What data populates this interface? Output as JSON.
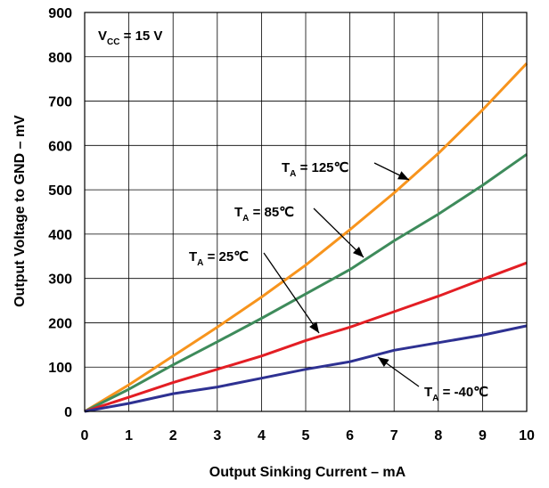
{
  "chart_data": {
    "type": "line",
    "xlabel": "Output Sinking Current – mA",
    "ylabel": "Output Voltage to GND – mV",
    "xlim": [
      0,
      10
    ],
    "ylim": [
      0,
      900
    ],
    "xticks": [
      "0",
      "1",
      "2",
      "3",
      "4",
      "5",
      "6",
      "7",
      "8",
      "9",
      "10"
    ],
    "yticks": [
      "0",
      "100",
      "200",
      "300",
      "400",
      "500",
      "600",
      "700",
      "800",
      "900"
    ],
    "grid": true,
    "annotation": {
      "main": "V",
      "sub": "CC",
      "rest": " = 15 V"
    },
    "series": [
      {
        "name": "T_A = 125℃",
        "label_main": "T",
        "label_sub": "A",
        "label_rest": " = 125℃",
        "color": "#F7941D",
        "x": [
          0,
          1,
          2,
          3,
          4,
          5,
          6,
          7,
          8,
          9,
          10
        ],
        "values": [
          0,
          60,
          125,
          190,
          258,
          330,
          410,
          493,
          582,
          680,
          785
        ]
      },
      {
        "name": "T_A = 85℃",
        "label_main": "T",
        "label_sub": "A",
        "label_rest": " = 85℃",
        "color": "#3E8B5B",
        "x": [
          0,
          1,
          2,
          3,
          4,
          5,
          6,
          7,
          8,
          9,
          10
        ],
        "values": [
          0,
          50,
          105,
          157,
          210,
          265,
          320,
          385,
          445,
          510,
          580
        ]
      },
      {
        "name": "T_A = 25℃",
        "label_main": "T",
        "label_sub": "A",
        "label_rest": " = 25℃",
        "color": "#E31E24",
        "x": [
          0,
          1,
          2,
          3,
          4,
          5,
          6,
          7,
          8,
          9,
          10
        ],
        "values": [
          0,
          32,
          65,
          95,
          125,
          160,
          190,
          225,
          260,
          298,
          335
        ]
      },
      {
        "name": "T_A = -40℃",
        "label_main": "T",
        "label_sub": "A",
        "label_rest": " = -40℃",
        "color": "#2E3192",
        "x": [
          0,
          1,
          2,
          3,
          4,
          5,
          6,
          7,
          8,
          9,
          10
        ],
        "values": [
          0,
          18,
          40,
          55,
          75,
          95,
          112,
          138,
          155,
          172,
          193
        ]
      }
    ]
  }
}
